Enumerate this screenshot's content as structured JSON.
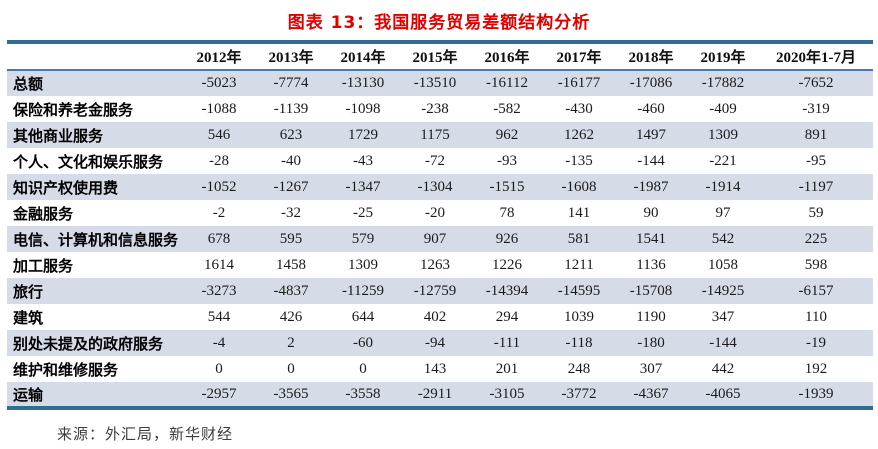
{
  "title": "图表 13：我国服务贸易差额结构分析",
  "source_note": "来源：外汇局，新华财经",
  "colors": {
    "title_red": "#e00000",
    "table_border_teal": "#2e6e91",
    "header_rule_blue": "#4577b5",
    "row_shade_blue": "#d5dce8",
    "text_black": "#0d0d0d"
  },
  "chart_data": {
    "type": "table",
    "title": "图表 13：我国服务贸易差额结构分析",
    "columns": [
      "2012年",
      "2013年",
      "2014年",
      "2015年",
      "2016年",
      "2017年",
      "2018年",
      "2019年",
      "2020年1-7月"
    ],
    "rows": [
      {
        "label": "总额",
        "values": [
          -5023,
          -7774,
          -13130,
          -13510,
          -16112,
          -16177,
          -17086,
          -17882,
          -7652
        ]
      },
      {
        "label": "保险和养老金服务",
        "values": [
          -1088,
          -1139,
          -1098,
          -238,
          -582,
          -430,
          -460,
          -409,
          -319
        ]
      },
      {
        "label": "其他商业服务",
        "values": [
          546,
          623,
          1729,
          1175,
          962,
          1262,
          1497,
          1309,
          891
        ]
      },
      {
        "label": "个人、文化和娱乐服务",
        "values": [
          -28,
          -40,
          -43,
          -72,
          -93,
          -135,
          -144,
          -221,
          -95
        ]
      },
      {
        "label": "知识产权使用费",
        "values": [
          -1052,
          -1267,
          -1347,
          -1304,
          -1515,
          -1608,
          -1987,
          -1914,
          -1197
        ]
      },
      {
        "label": "金融服务",
        "values": [
          -2,
          -32,
          -25,
          -20,
          78,
          141,
          90,
          97,
          59
        ]
      },
      {
        "label": "电信、计算机和信息服务",
        "values": [
          678,
          595,
          579,
          907,
          926,
          581,
          1541,
          542,
          225
        ]
      },
      {
        "label": "加工服务",
        "values": [
          1614,
          1458,
          1309,
          1263,
          1226,
          1211,
          1136,
          1058,
          598
        ]
      },
      {
        "label": "旅行",
        "values": [
          -3273,
          -4837,
          -11259,
          -12759,
          -14394,
          -14595,
          -15708,
          -14925,
          -6157
        ]
      },
      {
        "label": "建筑",
        "values": [
          544,
          426,
          644,
          402,
          294,
          1039,
          1190,
          347,
          110
        ]
      },
      {
        "label": "别处未提及的政府服务",
        "values": [
          -4,
          2,
          -60,
          -94,
          -111,
          -118,
          -180,
          -144,
          -19
        ]
      },
      {
        "label": "维护和维修服务",
        "values": [
          0,
          0,
          0,
          143,
          201,
          248,
          307,
          442,
          192
        ]
      },
      {
        "label": "运输",
        "values": [
          -2957,
          -3565,
          -3558,
          -2911,
          -3105,
          -3772,
          -4367,
          -4065,
          -1939
        ]
      }
    ]
  }
}
